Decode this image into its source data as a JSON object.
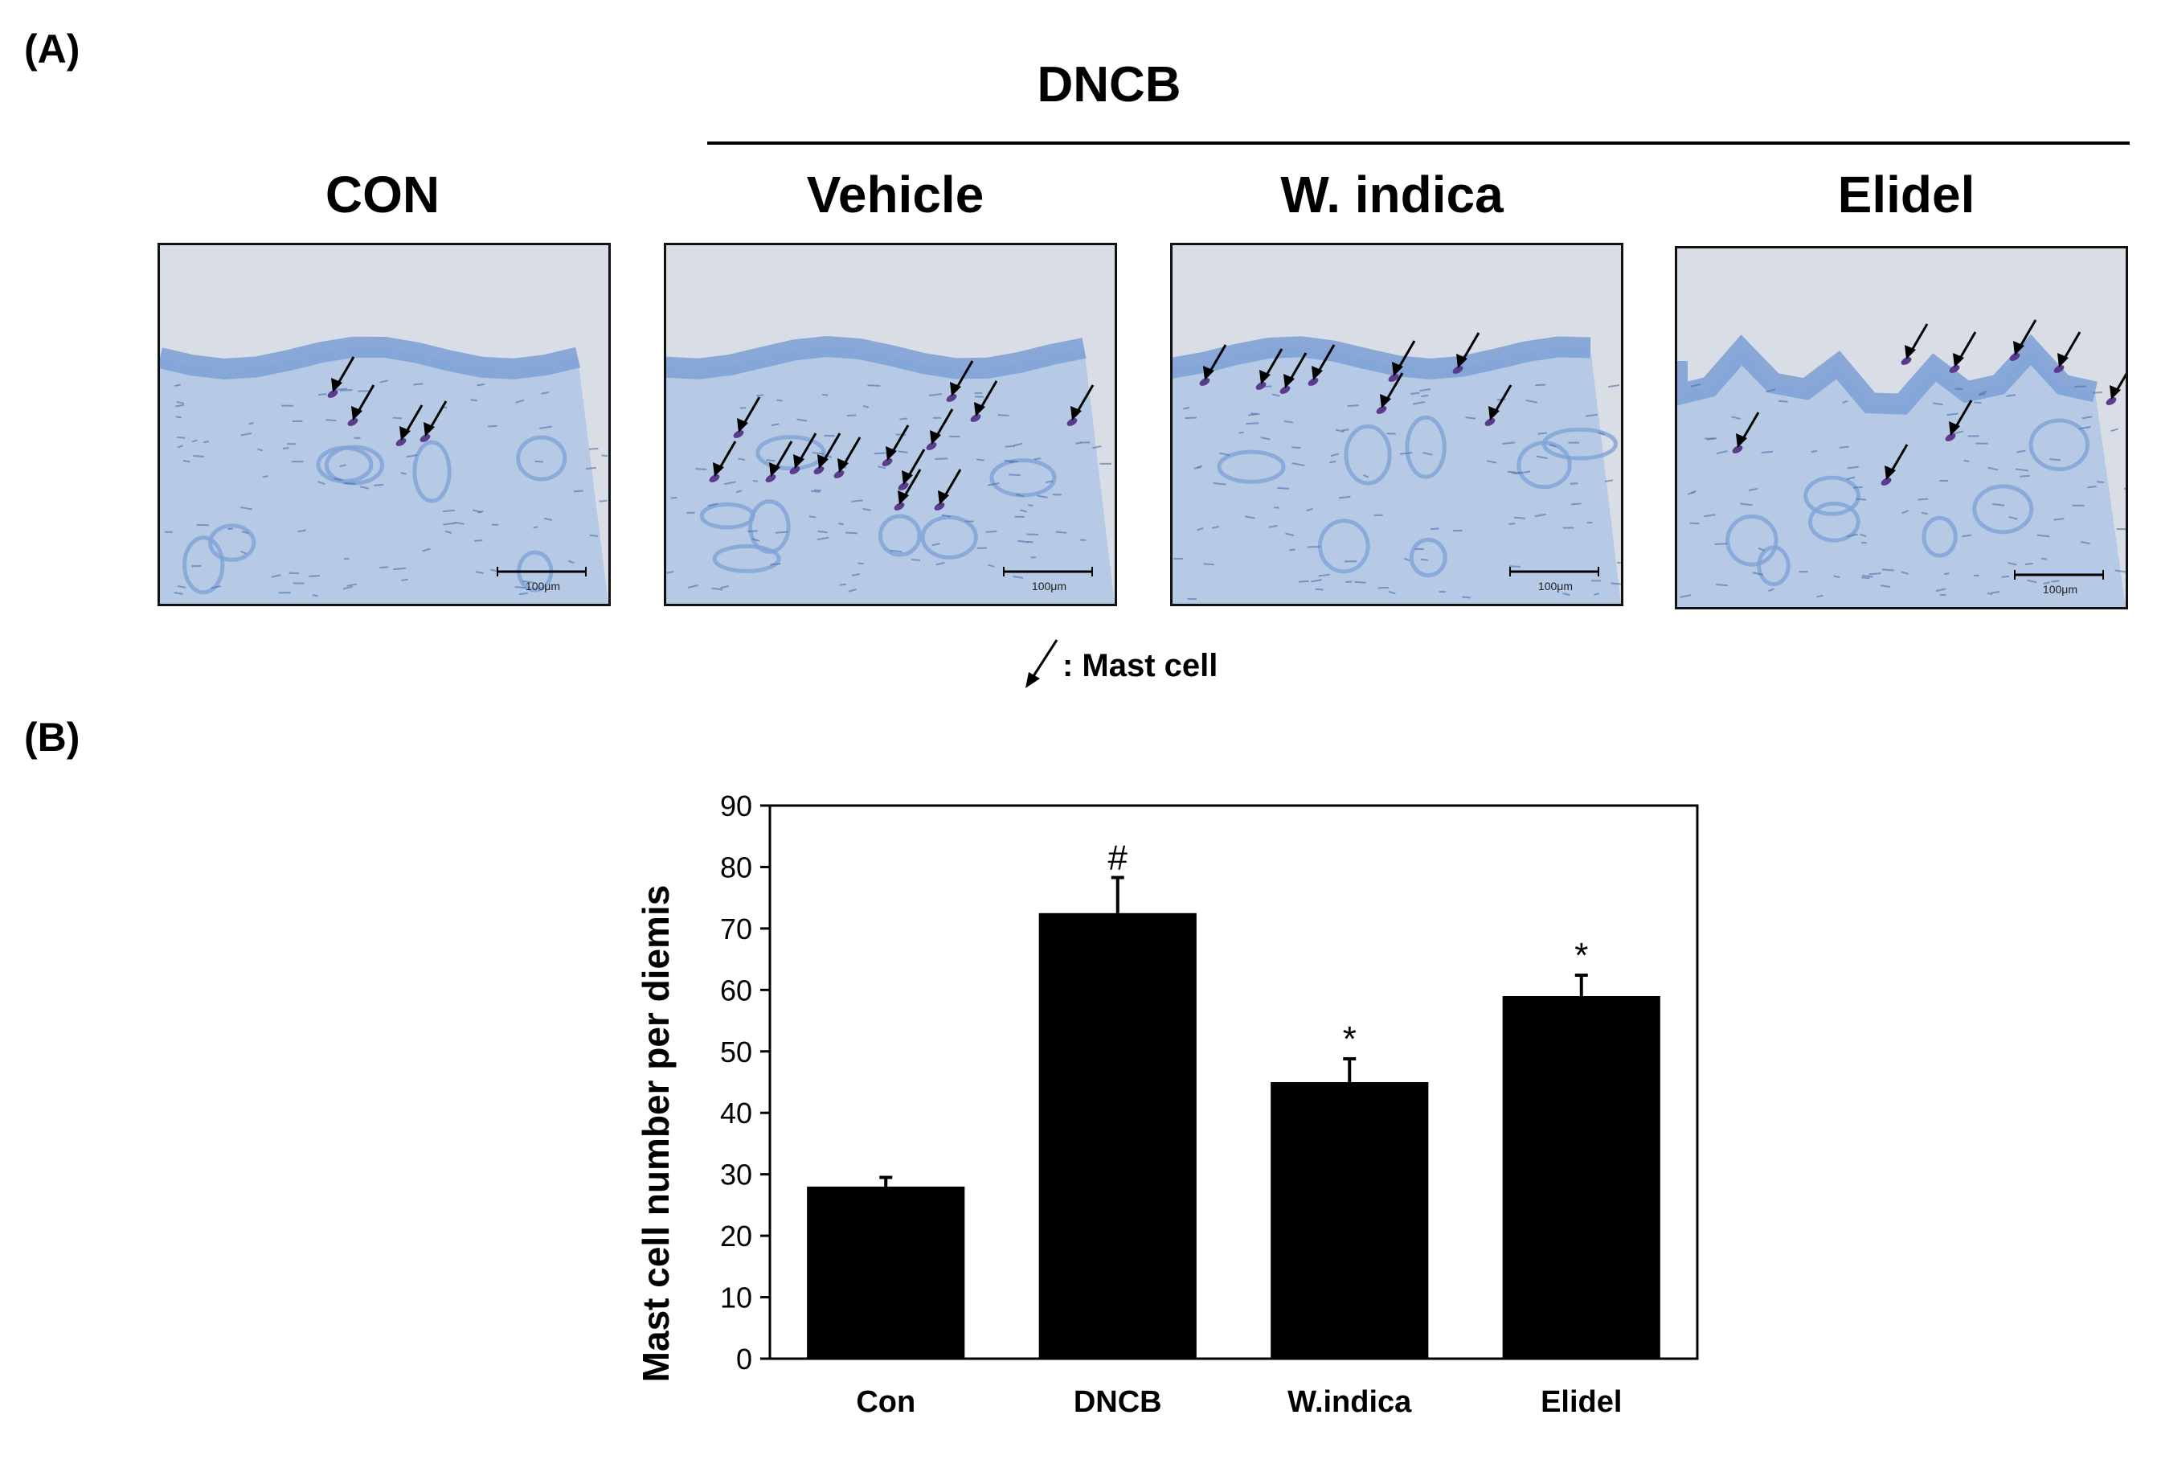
{
  "panel_a": {
    "letter": "(A)",
    "group_title": "DNCB",
    "image_labels": [
      "CON",
      "Vehicle",
      "W. indica",
      "Elidel"
    ],
    "scale_bar_text": "100μm",
    "legend_text": ": Mast cell",
    "colors": {
      "tissue": "#a9c3e4",
      "epidermis": "#7fa2d6",
      "background": "#d9dde6",
      "mast_cell": "#5a3b8c"
    }
  },
  "panel_b": {
    "letter": "(B)"
  },
  "chart_data": {
    "type": "bar",
    "categories": [
      "Con",
      "DNCB",
      "W.indica",
      "Elidel"
    ],
    "values": [
      28,
      72.5,
      45,
      59
    ],
    "errors": [
      1.5,
      5.8,
      3.8,
      3.4
    ],
    "significance": [
      "",
      "#",
      "*",
      "*"
    ],
    "ylabel": "Mast cell number per diemis",
    "ylim": [
      0,
      90
    ],
    "yticks": [
      0,
      10,
      20,
      30,
      40,
      50,
      60,
      70,
      80,
      90
    ],
    "bar_color": "#000000",
    "grid": false
  }
}
